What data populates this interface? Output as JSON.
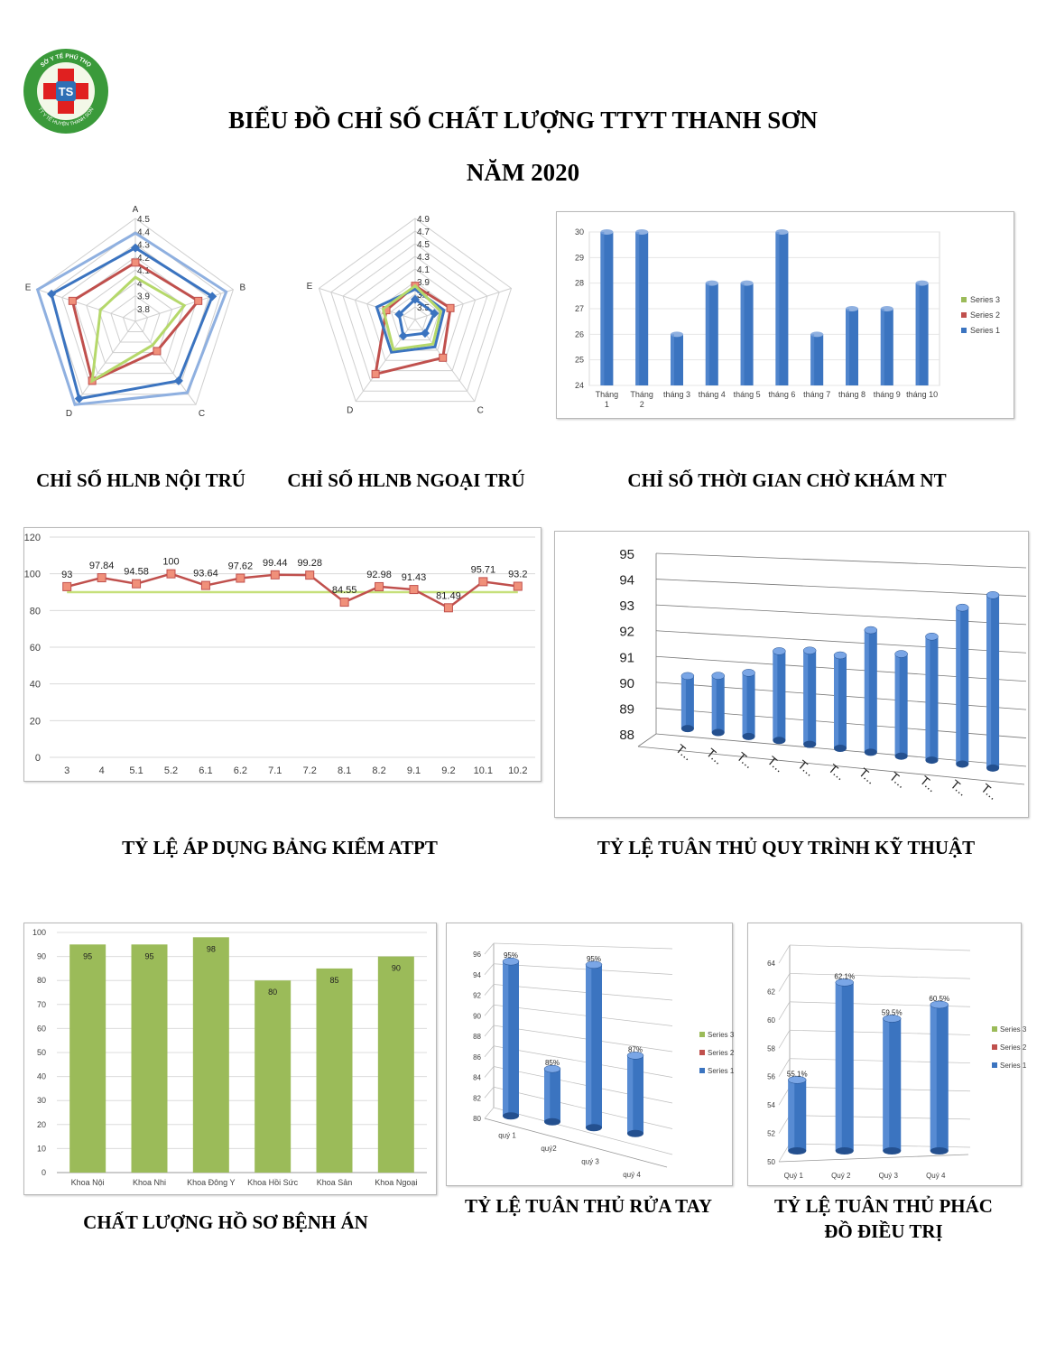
{
  "header": {
    "title_line1": "BIỂU ĐỒ CHỈ SỐ CHẤT LƯỢNG TTYT THANH SƠN",
    "title_line2": "NĂM 2020"
  },
  "logo": {
    "text_top": "SỞ Y TẾ PHÚ THỌ",
    "text_left": "TT Y TẾ HUYỆN THANH SƠN",
    "monogram": "TS",
    "colors": {
      "ring": "#3a9a3a",
      "cross": "#e02020",
      "inner": "#ffffff"
    }
  },
  "captions": {
    "radar1": "CHỈ SỐ HLNB NỘI TRÚ",
    "radar2": "CHỈ SỐ HLNB NGOẠI TRÚ",
    "wait": "CHỈ SỐ THỜI GIAN CHỜ KHÁM NT",
    "atpt": "TỶ LỆ ÁP DỤNG BẢNG KIỂM ATPT",
    "qtkt": "TỶ LỆ TUÂN THỦ QUY TRÌNH KỸ THUẬT",
    "hsba": "CHẤT LƯỢNG HỒ SƠ BỆNH ÁN",
    "handwash": "TỶ LỆ TUÂN THỦ RỬA TAY",
    "protocol_line1": "TỶ LỆ TUÂN THỦ PHÁC",
    "protocol_line2": "ĐỒ ĐIỀU TRỊ"
  },
  "colors": {
    "blue": "#3b74c0",
    "blue_dark": "#24508f",
    "blue_light": "#8fb0e0",
    "red": "#c0504d",
    "red_marker": "#f0907a",
    "green": "#9bbb59",
    "green_line": "#c6e07a",
    "grid": "#d9d9d9",
    "axis_text": "#404040"
  },
  "chart_data": [
    {
      "id": "radar1",
      "type": "radar",
      "axes": [
        "A",
        "B",
        "C",
        "D",
        "E"
      ],
      "ticks": [
        "3.8",
        "3.9",
        "4",
        "4.1",
        "4.2",
        "4.3",
        "4.4",
        "4.5"
      ],
      "range": [
        3.8,
        4.5
      ],
      "series": [
        {
          "values": [
            4.4,
            4.45,
            4.4,
            4.5,
            4.5
          ],
          "color": "#8fb0e0",
          "marker": false
        },
        {
          "values": [
            4.3,
            4.35,
            4.3,
            4.45,
            4.4
          ],
          "color": "#3b74c0",
          "marker": true
        },
        {
          "values": [
            4.2,
            4.25,
            4.05,
            4.3,
            4.25
          ],
          "color": "#c0504d",
          "marker": true
        },
        {
          "values": [
            4.1,
            4.15,
            4.0,
            4.3,
            4.05
          ],
          "color": "#b5d86a",
          "marker": false
        }
      ]
    },
    {
      "id": "radar2",
      "type": "radar",
      "axes": [
        "",
        "",
        "C",
        "D",
        "E"
      ],
      "ticks": [
        "3.5",
        "3.7",
        "3.9",
        "4.1",
        "4.3",
        "4.5",
        "4.7",
        "4.9"
      ],
      "range": [
        3.4,
        4.9
      ],
      "series": [
        {
          "values": [
            3.9,
            3.95,
            4.1,
            4.4,
            3.85
          ],
          "color": "#c0504d",
          "marker": true
        },
        {
          "values": [
            3.85,
            3.85,
            3.9,
            4.0,
            4.0
          ],
          "color": "#3b74c0",
          "marker": false
        },
        {
          "values": [
            3.9,
            3.8,
            3.85,
            3.95,
            3.9
          ],
          "color": "#b5d86a",
          "marker": false
        },
        {
          "values": [
            3.7,
            3.7,
            3.65,
            3.7,
            3.65
          ],
          "color": "#3b74c0",
          "marker": true
        }
      ]
    },
    {
      "id": "wait",
      "type": "bar",
      "categories": [
        "Tháng 1",
        "Tháng 2",
        "tháng 3",
        "tháng 4",
        "tháng 5",
        "tháng 6",
        "tháng 7",
        "tháng 8",
        "tháng 9",
        "tháng 10"
      ],
      "values": [
        30,
        30,
        26,
        28,
        28,
        30,
        26,
        27,
        27,
        28
      ],
      "ylim": [
        24,
        30
      ],
      "yticks": [
        "24",
        "25",
        "26",
        "27",
        "28",
        "29",
        "30"
      ],
      "legend": [
        "Series 3",
        "Series 2",
        "Series 1"
      ],
      "legend_colors": [
        "#9bbb59",
        "#c0504d",
        "#3b74c0"
      ]
    },
    {
      "id": "atpt",
      "type": "line",
      "categories": [
        "3",
        "4",
        "5.1",
        "5.2",
        "6.1",
        "6.2",
        "7.1",
        "7.2",
        "8.1",
        "8.2",
        "9.1",
        "9.2",
        "10.1",
        "10.2"
      ],
      "values": [
        93,
        97.84,
        94.58,
        100,
        93.64,
        97.62,
        99.44,
        99.28,
        84.55,
        92.98,
        91.43,
        81.49,
        95.71,
        93.2
      ],
      "labels": [
        "93",
        "97.84",
        "94.58",
        "100",
        "93.64",
        "97.62",
        "99.44",
        "99.28",
        "84.55",
        "92.98",
        "91.43",
        "81.49",
        "95.71",
        "93.2"
      ],
      "target": 90,
      "ylim": [
        0,
        120
      ],
      "yticks": [
        "0",
        "20",
        "40",
        "60",
        "80",
        "100",
        "120"
      ]
    },
    {
      "id": "qtkt",
      "type": "bar",
      "categories": [
        "T...",
        "T...",
        "T...",
        "T...",
        "T...",
        "T...",
        "T...",
        "T...",
        "T...",
        "T...",
        "T..."
      ],
      "values": [
        90.5,
        90.6,
        90.8,
        91.7,
        91.8,
        91.7,
        92.7,
        91.9,
        92.6,
        93.7,
        94.2
      ],
      "ylim": [
        88,
        95
      ],
      "yticks": [
        "88",
        "89",
        "90",
        "91",
        "92",
        "93",
        "94",
        "95"
      ]
    },
    {
      "id": "hsba",
      "type": "bar",
      "categories": [
        "Khoa Nội",
        "Khoa Nhi",
        "Khoa Đông Y",
        "Khoa Hồi Sức",
        "Khoa Sản",
        "Khoa Ngoại"
      ],
      "values": [
        95,
        95,
        98,
        80,
        85,
        90
      ],
      "labels": [
        "95",
        "95",
        "98",
        "80",
        "85",
        "90"
      ],
      "ylim": [
        0,
        100
      ],
      "yticks": [
        "0",
        "10",
        "20",
        "30",
        "40",
        "50",
        "60",
        "70",
        "80",
        "90",
        "100"
      ]
    },
    {
      "id": "handwash",
      "type": "bar",
      "categories": [
        "quý 1",
        "quý2",
        "quý 3",
        "quý 4"
      ],
      "values": [
        95,
        85,
        95,
        87
      ],
      "labels": [
        "95%",
        "85%",
        "95%",
        "87%"
      ],
      "ylim": [
        80,
        96
      ],
      "yticks": [
        "80",
        "82",
        "84",
        "86",
        "88",
        "90",
        "92",
        "94",
        "96"
      ],
      "legend": [
        "Series 3",
        "Series 2",
        "Series 1"
      ],
      "legend_colors": [
        "#9bbb59",
        "#c0504d",
        "#3b74c0"
      ]
    },
    {
      "id": "protocol",
      "type": "bar",
      "categories": [
        "Quý 1",
        "Quý 2",
        "Quý 3",
        "Quý 4"
      ],
      "values": [
        55.1,
        62.1,
        59.5,
        60.5
      ],
      "labels": [
        "55.1%",
        "62.1%",
        "59.5%",
        "60.5%"
      ],
      "ylim": [
        50,
        64
      ],
      "yticks": [
        "50",
        "52",
        "54",
        "56",
        "58",
        "60",
        "62",
        "64"
      ],
      "legend": [
        "Series 3",
        "Series 2",
        "Series 1"
      ],
      "legend_colors": [
        "#9bbb59",
        "#c0504d",
        "#3b74c0"
      ]
    }
  ]
}
